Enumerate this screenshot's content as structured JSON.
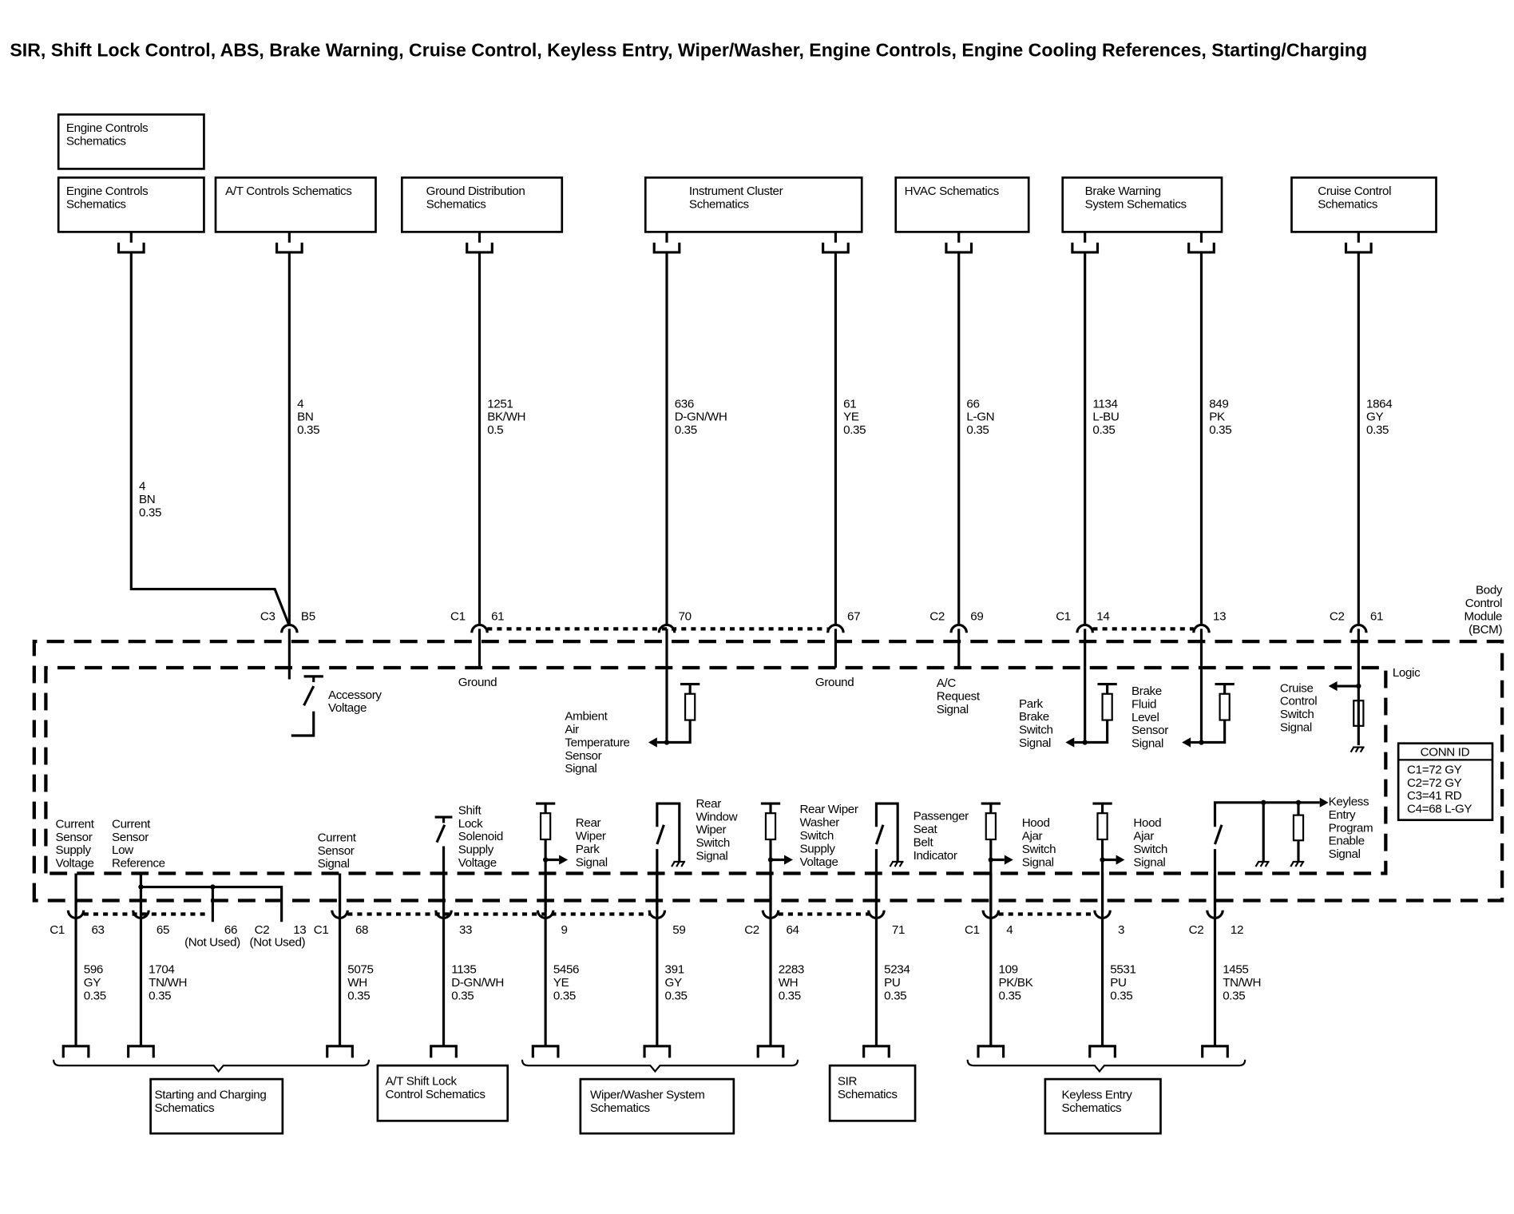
{
  "title": "SIR, Shift Lock Control, ABS, Brake Warning, Cruise Control, Keyless Entry, Wiper/Washer, Engine Controls, Engine Cooling References, Starting/Charging",
  "top_boxes": [
    {
      "lines": [
        "Engine Controls",
        "Schematics"
      ]
    },
    {
      "lines": [
        "Engine Controls",
        "Schematics"
      ]
    },
    {
      "lines": [
        "A/T Controls Schematics"
      ]
    },
    {
      "lines": [
        "Ground Distribution",
        "Schematics"
      ]
    },
    {
      "lines": [
        "Instrument Cluster",
        "Schematics"
      ]
    },
    {
      "lines": [
        "HVAC Schematics"
      ]
    },
    {
      "lines": [
        "Brake Warning",
        "System Schematics"
      ]
    },
    {
      "lines": [
        "Cruise Control",
        "Schematics"
      ]
    }
  ],
  "top_wires": [
    {
      "circuit": "4",
      "color": "BN",
      "gauge": "0.35",
      "connector": "",
      "pin": ""
    },
    {
      "circuit": "4",
      "color": "BN",
      "gauge": "0.35",
      "connector": "C3",
      "pin": "B5"
    },
    {
      "circuit": "1251",
      "color": "BK/WH",
      "gauge": "0.5",
      "connector": "C1",
      "pin": "61"
    },
    {
      "circuit": "636",
      "color": "D-GN/WH",
      "gauge": "0.35",
      "connector": "",
      "pin": "70"
    },
    {
      "circuit": "61",
      "color": "YE",
      "gauge": "0.35",
      "connector": "",
      "pin": "67"
    },
    {
      "circuit": "66",
      "color": "L-GN",
      "gauge": "0.35",
      "connector": "C2",
      "pin": "69"
    },
    {
      "circuit": "1134",
      "color": "L-BU",
      "gauge": "0.35",
      "connector": "C1",
      "pin": "14"
    },
    {
      "circuit": "849",
      "color": "PK",
      "gauge": "0.35",
      "connector": "",
      "pin": "13"
    },
    {
      "circuit": "1864",
      "color": "GY",
      "gauge": "0.35",
      "connector": "C2",
      "pin": "61"
    }
  ],
  "module": {
    "name_lines": [
      "Body",
      "Control",
      "Module",
      "(BCM)"
    ],
    "logic_label": "Logic",
    "conn_id": {
      "header": "CONN ID",
      "rows": [
        "C1=72 GY",
        "C2=72 GY",
        "C3=41 RD",
        "C4=68 L-GY"
      ]
    }
  },
  "internal_labels": [
    {
      "lines": [
        "Accessory",
        "Voltage"
      ]
    },
    {
      "lines": [
        "Ground"
      ]
    },
    {
      "lines": [
        "Ambient",
        "Air",
        "Temperature",
        "Sensor",
        "Signal"
      ]
    },
    {
      "lines": [
        "Ground"
      ]
    },
    {
      "lines": [
        "A/C",
        "Request",
        "Signal"
      ]
    },
    {
      "lines": [
        "Park",
        "Brake",
        "Switch",
        "Signal"
      ]
    },
    {
      "lines": [
        "Brake",
        "Fluid",
        "Level",
        "Sensor",
        "Signal"
      ]
    },
    {
      "lines": [
        "Cruise",
        "Control",
        "Switch",
        "Signal"
      ]
    },
    {
      "lines": [
        "Current",
        "Sensor",
        "Supply",
        "Voltage"
      ]
    },
    {
      "lines": [
        "Current",
        "Sensor",
        "Low",
        "Reference"
      ]
    },
    {
      "lines": [
        "Current",
        "Sensor",
        "Signal"
      ]
    },
    {
      "lines": [
        "Shift",
        "Lock",
        "Solenoid",
        "Supply",
        "Voltage"
      ]
    },
    {
      "lines": [
        "Rear",
        "Wiper",
        "Park",
        "Signal"
      ]
    },
    {
      "lines": [
        "Rear",
        "Window",
        "Wiper",
        "Switch",
        "Signal"
      ]
    },
    {
      "lines": [
        "Rear Wiper",
        "Washer",
        "Switch",
        "Supply",
        "Voltage"
      ]
    },
    {
      "lines": [
        "Passenger",
        "Seat",
        "Belt",
        "Indicator"
      ]
    },
    {
      "lines": [
        "Hood",
        "Ajar",
        "Switch",
        "Signal"
      ]
    },
    {
      "lines": [
        "Hood",
        "Ajar",
        "Switch",
        "Signal"
      ]
    },
    {
      "lines": [
        "Keyless",
        "Entry",
        "Program",
        "Enable",
        "Signal"
      ]
    }
  ],
  "bottom_wires": [
    {
      "connector": "C1",
      "pin": "63",
      "note": "",
      "circuit": "596",
      "color": "GY",
      "gauge": "0.35"
    },
    {
      "connector": "",
      "pin": "65",
      "note": "",
      "circuit": "1704",
      "color": "TN/WH",
      "gauge": "0.35"
    },
    {
      "connector": "",
      "pin": "66",
      "note": "(Not Used)",
      "circuit": "",
      "color": "",
      "gauge": ""
    },
    {
      "connector": "C2",
      "pin": "13",
      "note": "(Not Used)",
      "circuit": "",
      "color": "",
      "gauge": ""
    },
    {
      "connector": "C1",
      "pin": "68",
      "note": "",
      "circuit": "5075",
      "color": "WH",
      "gauge": "0.35"
    },
    {
      "connector": "",
      "pin": "33",
      "note": "",
      "circuit": "1135",
      "color": "D-GN/WH",
      "gauge": "0.35"
    },
    {
      "connector": "",
      "pin": "9",
      "note": "",
      "circuit": "5456",
      "color": "YE",
      "gauge": "0.35"
    },
    {
      "connector": "",
      "pin": "59",
      "note": "",
      "circuit": "391",
      "color": "GY",
      "gauge": "0.35"
    },
    {
      "connector": "C2",
      "pin": "64",
      "note": "",
      "circuit": "2283",
      "color": "WH",
      "gauge": "0.35"
    },
    {
      "connector": "",
      "pin": "71",
      "note": "",
      "circuit": "5234",
      "color": "PU",
      "gauge": "0.35"
    },
    {
      "connector": "C1",
      "pin": "4",
      "note": "",
      "circuit": "109",
      "color": "PK/BK",
      "gauge": "0.35"
    },
    {
      "connector": "",
      "pin": "3",
      "note": "",
      "circuit": "5531",
      "color": "PU",
      "gauge": "0.35"
    },
    {
      "connector": "C2",
      "pin": "12",
      "note": "",
      "circuit": "1455",
      "color": "TN/WH",
      "gauge": "0.35"
    }
  ],
  "bottom_boxes": [
    {
      "lines": [
        "Starting and Charging",
        "Schematics"
      ]
    },
    {
      "lines": [
        "A/T Shift Lock",
        "Control Schematics"
      ]
    },
    {
      "lines": [
        "Wiper/Washer System",
        "Schematics"
      ]
    },
    {
      "lines": [
        "SIR",
        "Schematics"
      ]
    },
    {
      "lines": [
        "Keyless Entry",
        "Schematics"
      ]
    }
  ]
}
